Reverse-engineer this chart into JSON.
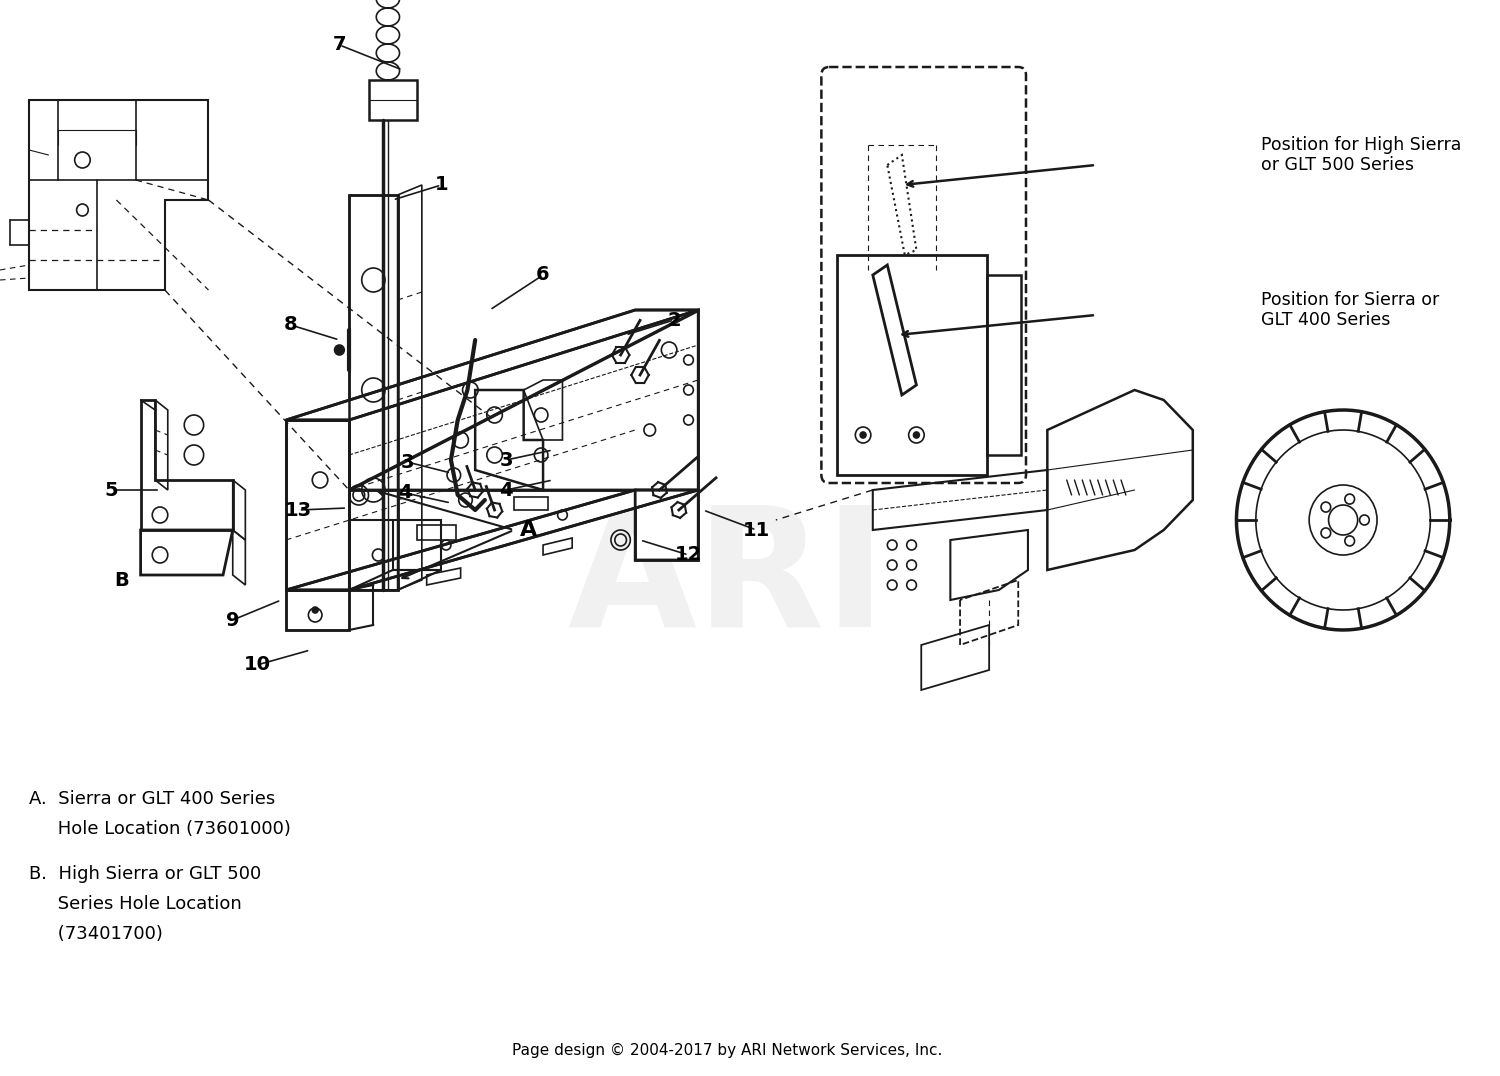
{
  "bg_color": "#ffffff",
  "fig_width": 15.0,
  "fig_height": 10.76,
  "dpi": 100,
  "footer_text": "Page design © 2004-2017 by ARI Network Services, Inc.",
  "footer_fontsize": 11,
  "label_A_line1": "A.  Sierra or GLT 400 Series",
  "label_A_line2": "     Hole Location (73601000)",
  "label_B_line1": "B.  High Sierra or GLT 500",
  "label_B_line2": "     Series Hole Location",
  "label_B_line3": "     (73401700)",
  "label_fontsize": 13,
  "callout_high_sierra": "Position for High Sierra\nor GLT 500 Series",
  "callout_sierra": "Position for Sierra or\nGLT 400 Series",
  "callout_fontsize": 12.5,
  "part_label_fontsize": 14,
  "watermark_text": "ARI",
  "watermark_fontsize": 120,
  "watermark_color": "#c8c8c8",
  "watermark_alpha": 0.25,
  "line_color": "#1a1a1a",
  "text_color": "#000000"
}
